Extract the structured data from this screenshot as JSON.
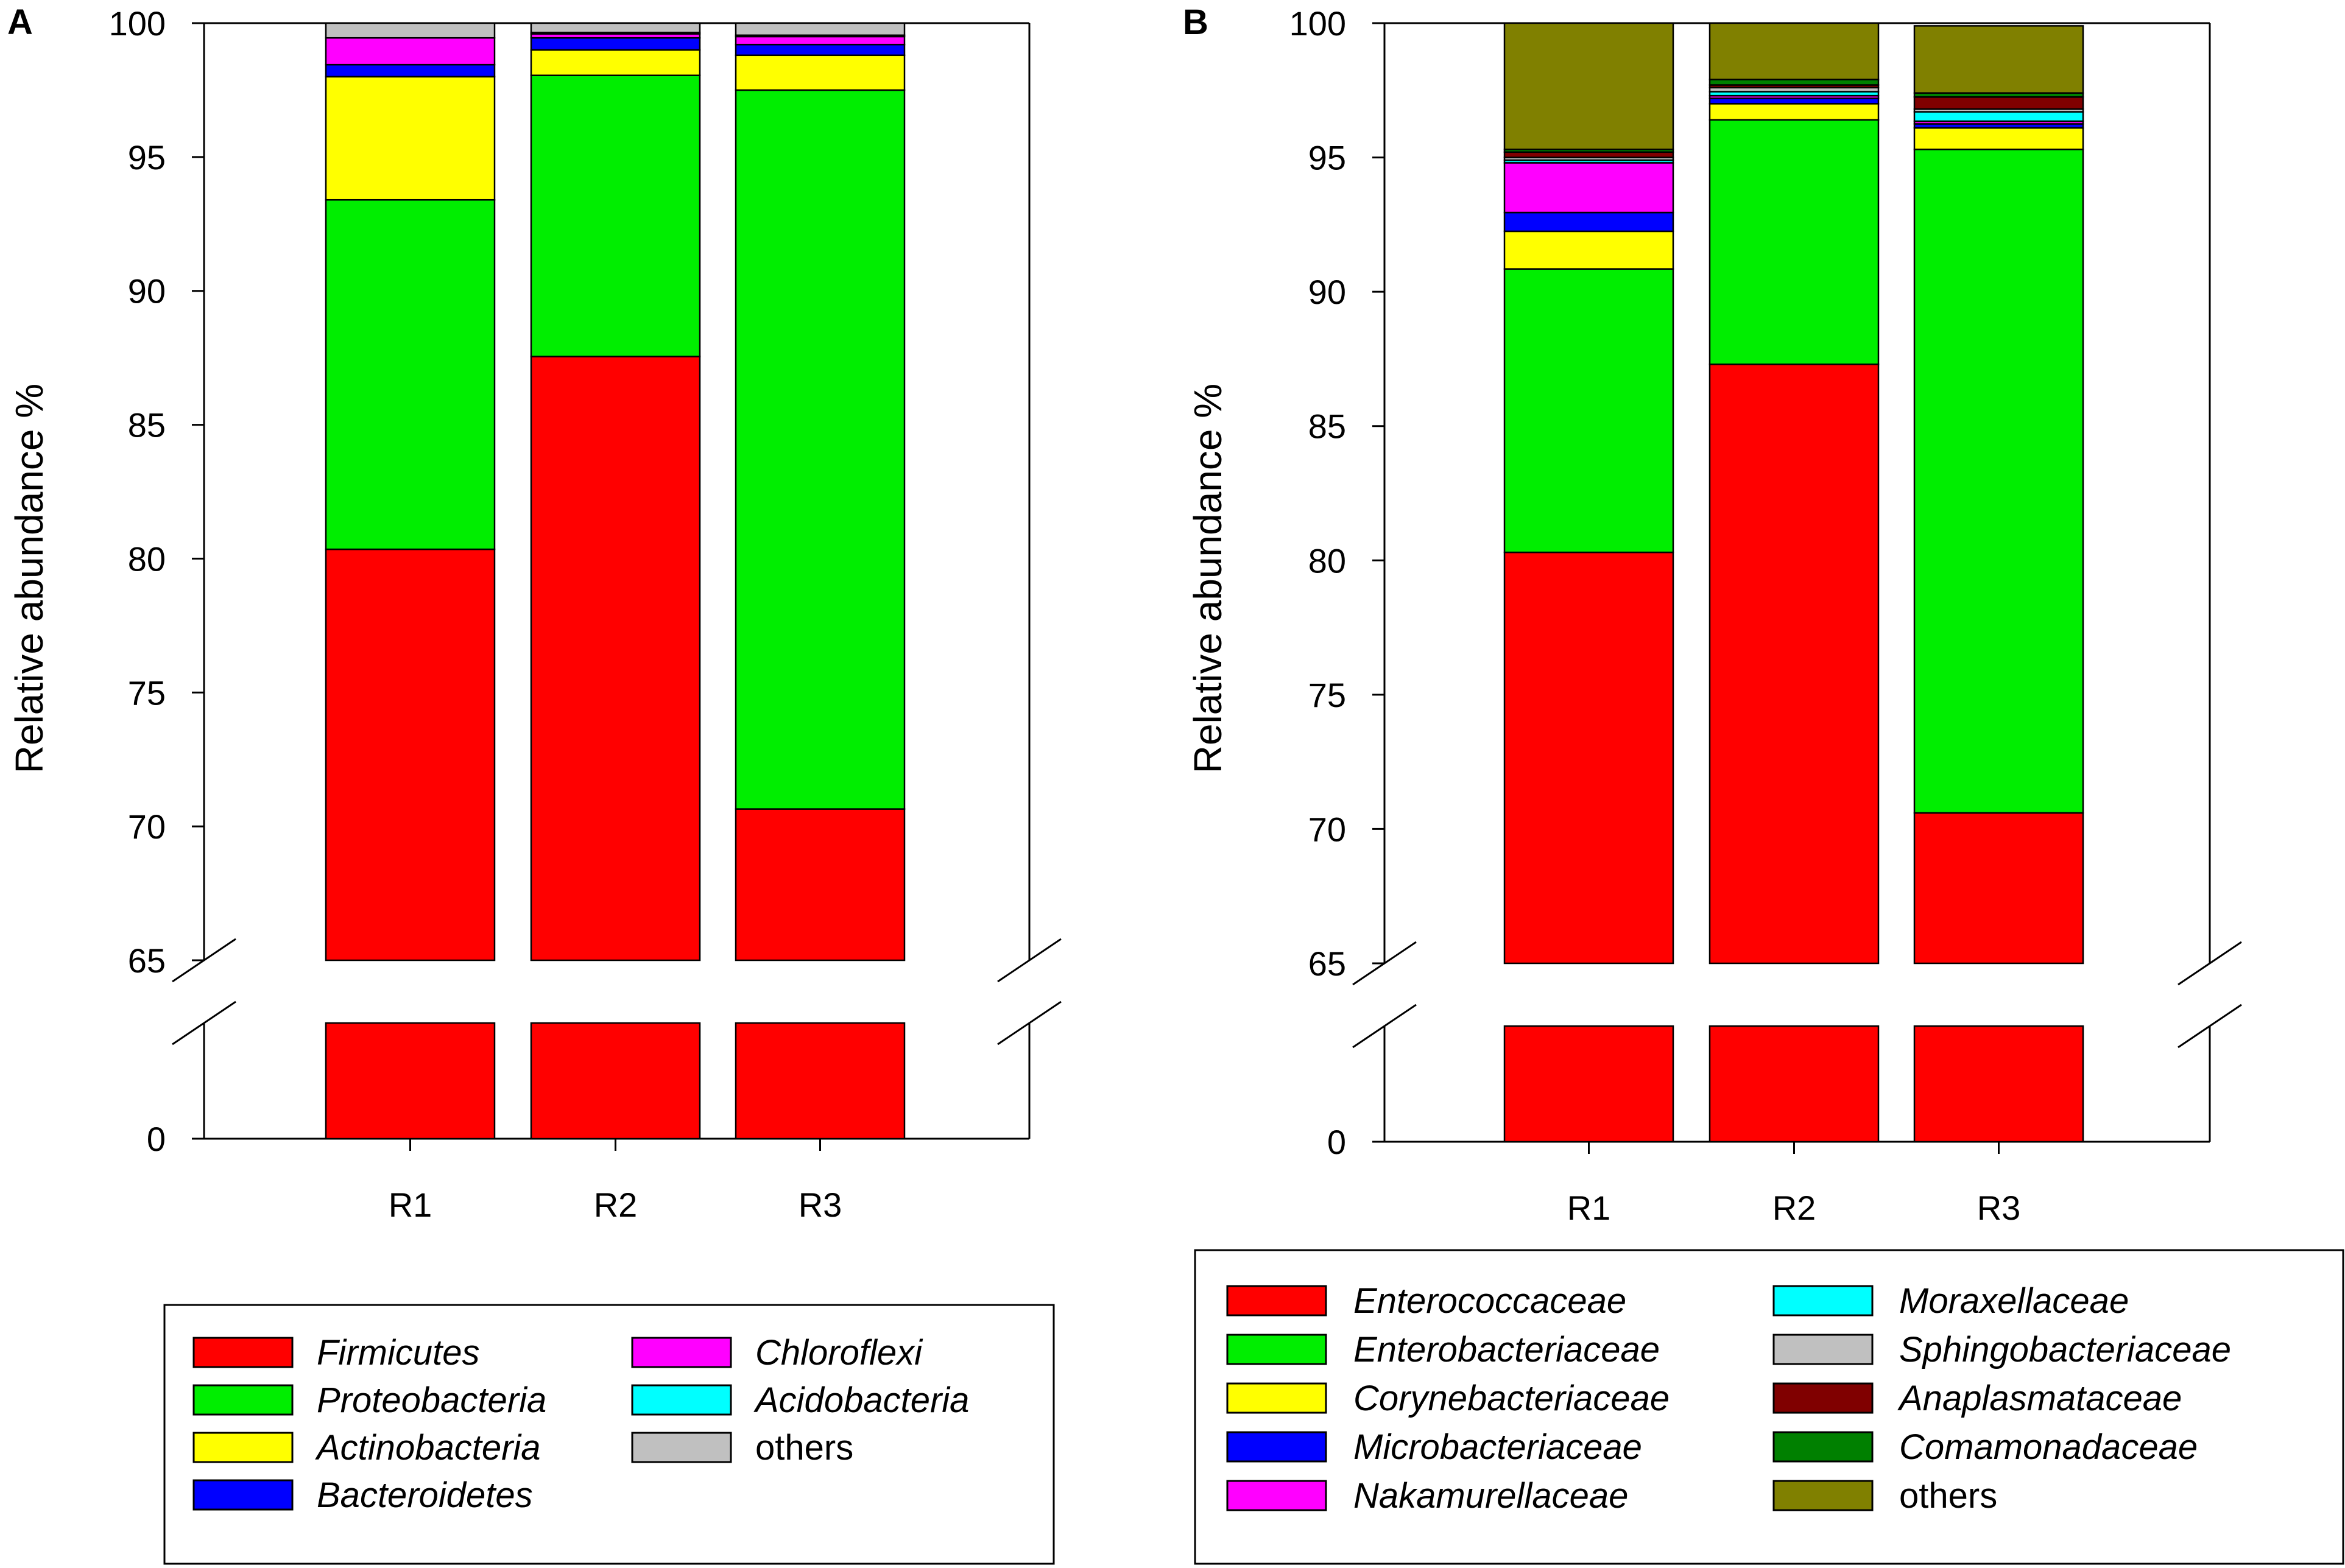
{
  "chart_data": [
    {
      "type": "stacked-bar",
      "panel": "A",
      "ylabel": "Relative abundance %",
      "axis_break": true,
      "yticks_upper": [
        65,
        70,
        75,
        80,
        85,
        90,
        95,
        100
      ],
      "ytick_lower": 0,
      "ylim_upper": [
        65,
        100
      ],
      "categories": [
        "R1",
        "R2",
        "R3"
      ],
      "series": [
        {
          "name": "Firmicutes",
          "color": "#ff0000",
          "italic": true,
          "values": [
            80.35,
            87.55,
            70.65
          ]
        },
        {
          "name": "Proteobacteria",
          "color": "#00ee00",
          "italic": true,
          "values": [
            13.05,
            10.5,
            26.85
          ]
        },
        {
          "name": "Actinobacteria",
          "color": "#ffff00",
          "italic": true,
          "values": [
            4.6,
            0.95,
            1.3
          ]
        },
        {
          "name": "Bacteroidetes",
          "color": "#0000ff",
          "italic": true,
          "values": [
            0.45,
            0.45,
            0.4
          ]
        },
        {
          "name": "Chloroflexi",
          "color": "#ff00ff",
          "italic": true,
          "values": [
            1.0,
            0.15,
            0.3
          ]
        },
        {
          "name": "Acidobacteria",
          "color": "#00ffff",
          "italic": true,
          "values": [
            0.0,
            0.05,
            0.05
          ]
        },
        {
          "name": "others",
          "color": "#c0c0c0",
          "italic": false,
          "values": [
            0.55,
            0.35,
            0.45
          ]
        }
      ]
    },
    {
      "type": "stacked-bar",
      "panel": "B",
      "ylabel": "Relative abundance %",
      "axis_break": true,
      "yticks_upper": [
        65,
        70,
        75,
        80,
        85,
        90,
        95,
        100
      ],
      "ytick_lower": 0,
      "ylim_upper": [
        65,
        100
      ],
      "categories": [
        "R1",
        "R2",
        "R3"
      ],
      "series": [
        {
          "name": "Enterococcaceae",
          "color": "#ff0000",
          "italic": true,
          "values": [
            80.3,
            87.3,
            70.6
          ]
        },
        {
          "name": "Enterobacteriaceae",
          "color": "#00ee00",
          "italic": true,
          "values": [
            10.55,
            9.1,
            24.7
          ]
        },
        {
          "name": "Corynebacteriaceae",
          "color": "#ffff00",
          "italic": true,
          "values": [
            1.4,
            0.6,
            0.8
          ]
        },
        {
          "name": "Microbacteriaceae",
          "color": "#0000ff",
          "italic": true,
          "values": [
            0.7,
            0.2,
            0.15
          ]
        },
        {
          "name": "Nakamurellaceae",
          "color": "#ff00ff",
          "italic": true,
          "values": [
            1.85,
            0.1,
            0.1
          ]
        },
        {
          "name": "Moraxellaceae",
          "color": "#00ffff",
          "italic": true,
          "values": [
            0.1,
            0.15,
            0.35
          ]
        },
        {
          "name": "Sphingobacteriaceae",
          "color": "#c0c0c0",
          "italic": true,
          "values": [
            0.1,
            0.15,
            0.1
          ]
        },
        {
          "name": "Anaplasmataceae",
          "color": "#800000",
          "italic": true,
          "values": [
            0.2,
            0.1,
            0.45
          ]
        },
        {
          "name": "Comamonadaceae",
          "color": "#008000",
          "italic": true,
          "values": [
            0.1,
            0.2,
            0.15
          ]
        },
        {
          "name": "others",
          "color": "#808000",
          "italic": false,
          "values": [
            4.7,
            2.1,
            2.5
          ]
        }
      ]
    }
  ]
}
